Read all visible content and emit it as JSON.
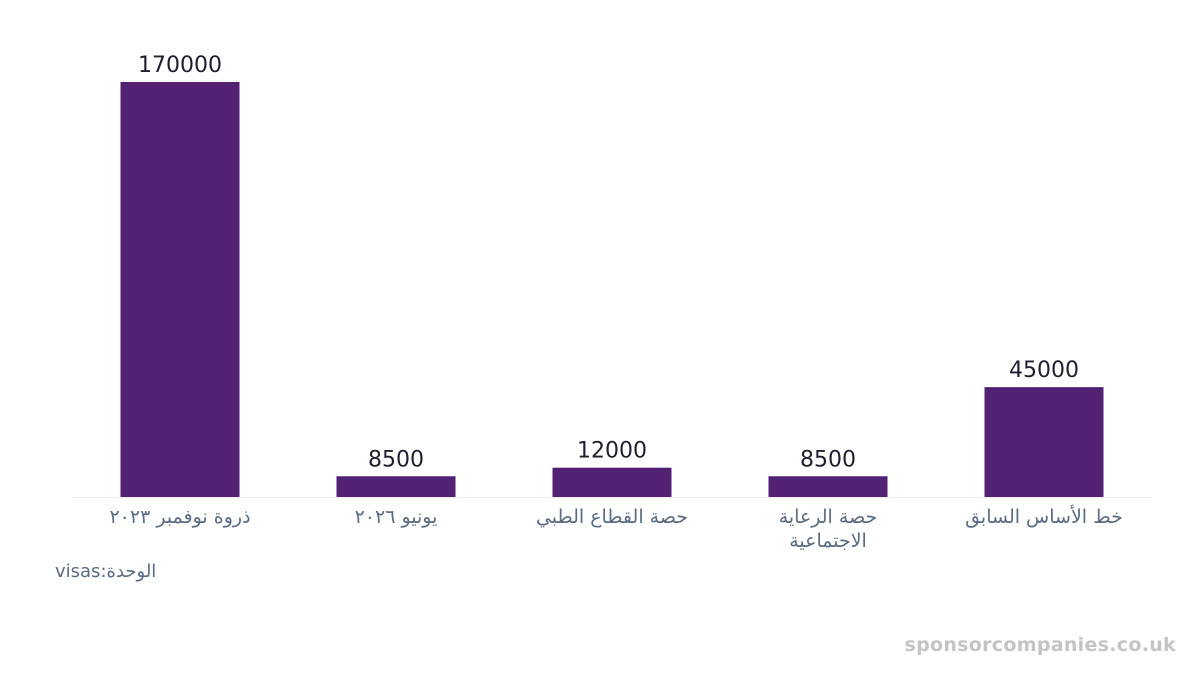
{
  "chart_data": {
    "type": "bar",
    "categories": [
      "ذروة نوفمبر ٢٠٢٣",
      "يونيو ٢٠٢٦",
      "حصة القطاع الطبي",
      "حصة الرعاية الاجتماعية",
      "خط الأساس السابق"
    ],
    "category_lines": [
      [
        "ذروة نوفمبر ٢٠٢٣"
      ],
      [
        "يونيو ٢٠٢٦"
      ],
      [
        "حصة القطاع الطبي"
      ],
      [
        "حصة الرعاية",
        "الاجتماعية"
      ],
      [
        "خط الأساس السابق"
      ]
    ],
    "values": [
      170000,
      8500,
      12000,
      8500,
      45000
    ],
    "ylim": [
      0,
      170000
    ],
    "grid": false,
    "colors": {
      "bar": "#522173",
      "baseline": "#eeeeee"
    }
  },
  "unit_text": "الوحدة:visas",
  "watermark": "sponsorcompanies.co.uk"
}
